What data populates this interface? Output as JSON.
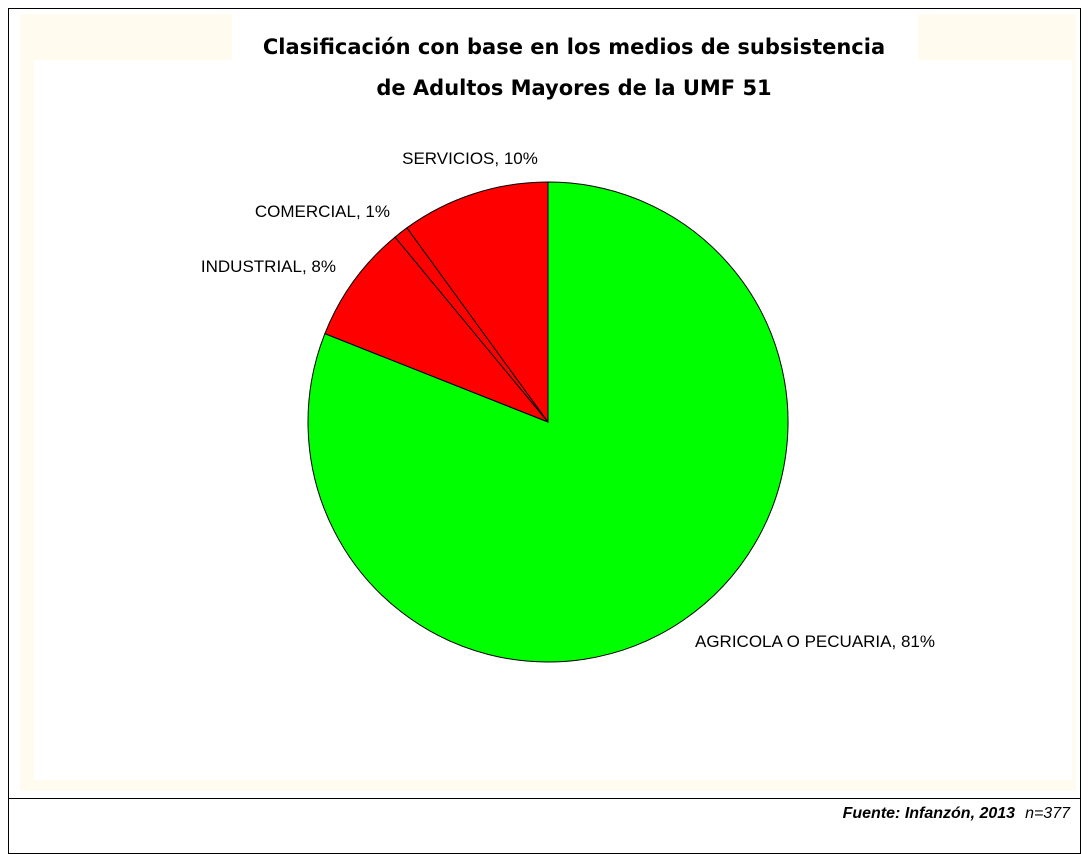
{
  "chart_data": {
    "type": "pie",
    "title": [
      "Clasificación con base en los medios de subsistencia",
      "de Adultos Mayores de la UMF 51"
    ],
    "categories": [
      "AGRICOLA O PECUARIA",
      "INDUSTRIAL",
      "COMERCIAL",
      "SERVICIOS"
    ],
    "values": [
      81,
      8,
      1,
      10
    ],
    "value_labels": [
      "81%",
      "8%",
      "1%",
      "10%"
    ],
    "colors": [
      "#00ff00",
      "#ff0000",
      "#ff0000",
      "#ff0000"
    ],
    "source": "Fuente: Infanzón, 2013",
    "sample": "n=377"
  }
}
